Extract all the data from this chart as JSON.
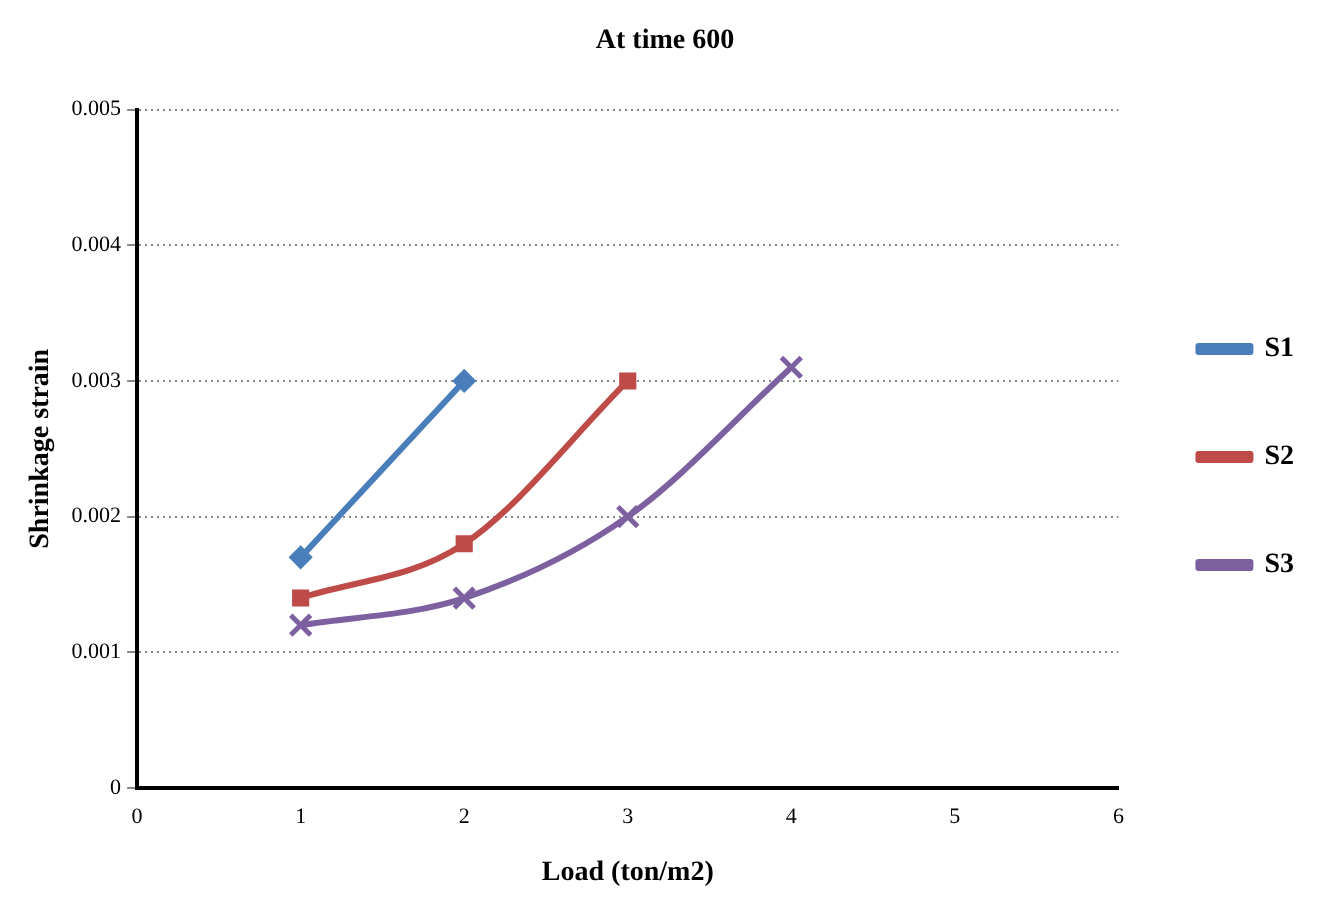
{
  "chart_data": {
    "type": "line",
    "title": "At time 600",
    "xlabel": "Load (ton/m2)",
    "ylabel": "Shrinkage strain",
    "xlim": [
      0,
      6
    ],
    "xticks": [
      0,
      1,
      2,
      3,
      4,
      5,
      6
    ],
    "ylim": [
      0,
      0.005
    ],
    "yticks": [
      0,
      0.001,
      0.002,
      0.003,
      0.004,
      0.005
    ],
    "grid": "y",
    "legend": "right",
    "series": [
      {
        "name": "S1",
        "color": "#4a7ebb",
        "marker": "diamond",
        "x": [
          1,
          2
        ],
        "values": [
          0.0017,
          0.003
        ]
      },
      {
        "name": "S2",
        "color": "#be4b48",
        "marker": "square",
        "x": [
          1,
          2,
          3
        ],
        "values": [
          0.0014,
          0.0018,
          0.003
        ]
      },
      {
        "name": "S3",
        "color": "#7d60a0",
        "marker": "cross",
        "x": [
          1,
          2,
          3,
          4
        ],
        "values": [
          0.0012,
          0.0014,
          0.002,
          0.0031
        ]
      }
    ]
  }
}
